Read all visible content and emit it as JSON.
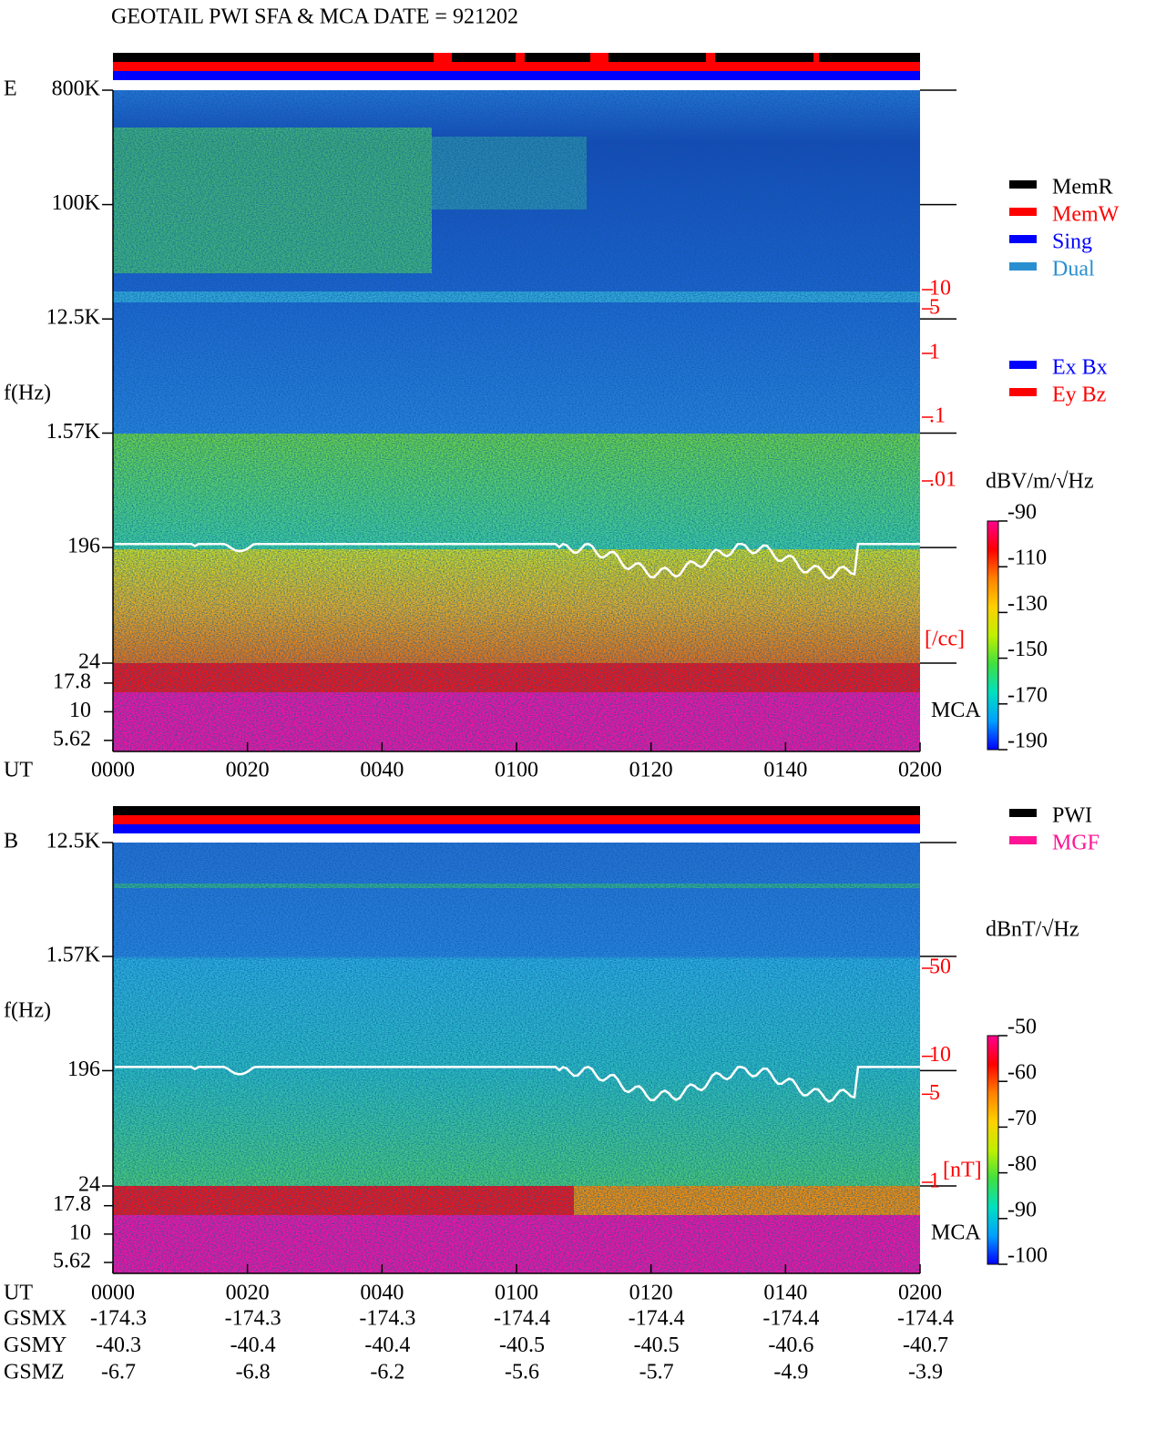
{
  "chart_data": [
    {
      "type": "spectrogram",
      "title": "GEOTAIL  PWI SFA & MCA   DATE = 921202",
      "panel_label": "E",
      "y_label": "f(Hz)",
      "yscale": "log",
      "ylim": [
        24,
        800000
      ],
      "yticks": [
        {
          "value": 800000,
          "label": "800K"
        },
        {
          "value": 100000,
          "label": "100K"
        },
        {
          "value": 12500,
          "label": "12.5K"
        },
        {
          "value": 1570,
          "label": "1.57K"
        },
        196,
        24
      ],
      "mca_label": "MCA",
      "mca_ylim": [
        4.5,
        26.6
      ],
      "mca_yticks": [
        17.8,
        10,
        5.62
      ],
      "x_label": "UT",
      "xlim": [
        0,
        120
      ],
      "xticks": [
        {
          "value": 0,
          "label": "0000"
        },
        {
          "value": 20,
          "label": "0020"
        },
        {
          "value": 40,
          "label": "0040"
        },
        {
          "value": 60,
          "label": "0100"
        },
        {
          "value": 80,
          "label": "0120"
        },
        {
          "value": 100,
          "label": "0140"
        },
        {
          "value": 120,
          "label": "0200"
        }
      ],
      "y2_label": "[/cc]",
      "y2lim": [
        0.01,
        10
      ],
      "y2color": "#ff0000",
      "y2ticks": [
        10,
        5,
        1,
        {
          "value": 0.1,
          "label": ".1"
        },
        {
          "value": 0.01,
          "label": ".01"
        }
      ],
      "legend": [
        {
          "name": "MemR",
          "color": "#000000"
        },
        {
          "name": "MemW",
          "color": "#ff0000"
        },
        {
          "name": "Sing",
          "color": "#0000ff"
        },
        {
          "name": "Dual",
          "color": "#2a8fd0"
        }
      ],
      "legend2": [
        {
          "name": "Ex Bx",
          "color": "#0000ff"
        },
        {
          "name": "Ey Bz",
          "color": "#ff0000"
        }
      ],
      "colorbar": {
        "label": "dBV/m/√Hz",
        "lim": [
          -190,
          -90
        ],
        "ticks": [
          -90,
          -110,
          -130,
          -150,
          -170,
          -190
        ],
        "colors": [
          "#0000ff",
          "#00a0ff",
          "#00e0c0",
          "#40e040",
          "#c0f000",
          "#ffd000",
          "#ff8000",
          "#ff0000",
          "#ff0090"
        ]
      }
    },
    {
      "type": "spectrogram",
      "panel_label": "B",
      "y_label": "f(Hz)",
      "yscale": "log",
      "ylim": [
        24,
        12500
      ],
      "yticks": [
        {
          "value": 12500,
          "label": "12.5K"
        },
        {
          "value": 1570,
          "label": "1.57K"
        },
        196,
        24
      ],
      "mca_label": "MCA",
      "mca_ylim": [
        4.5,
        26.6
      ],
      "mca_yticks": [
        17.8,
        10,
        5.62
      ],
      "x_label": "UT",
      "xlim": [
        0,
        120
      ],
      "xticks": [
        {
          "value": 0,
          "label": "0000"
        },
        {
          "value": 20,
          "label": "0020"
        },
        {
          "value": 40,
          "label": "0040"
        },
        {
          "value": 60,
          "label": "0100"
        },
        {
          "value": 80,
          "label": "0120"
        },
        {
          "value": 100,
          "label": "0140"
        },
        {
          "value": 120,
          "label": "0200"
        }
      ],
      "y2_label": "[nT]",
      "y2lim": [
        1,
        50
      ],
      "y2color": "#ff0000",
      "y2ticks": [
        50,
        10,
        5,
        1
      ],
      "legend": [
        {
          "name": "PWI",
          "color": "#000000"
        },
        {
          "name": "MGF",
          "color": "#ff1493"
        }
      ],
      "colorbar": {
        "label": "dBnT/√Hz",
        "lim": [
          -100,
          -50
        ],
        "ticks": [
          -50,
          -60,
          -70,
          -80,
          -90,
          -100
        ],
        "colors": [
          "#0000ff",
          "#00a0ff",
          "#00e0c0",
          "#40e040",
          "#c0f000",
          "#ffd000",
          "#ff8000",
          "#ff0000",
          "#ff0090"
        ]
      },
      "orbit": {
        "labels": [
          "GSMX",
          "GSMY",
          "GSMZ"
        ],
        "rows": [
          [
            -174.3,
            -174.3,
            -174.3,
            -174.4,
            -174.4,
            -174.4,
            -174.4
          ],
          [
            -40.3,
            -40.4,
            -40.4,
            -40.5,
            -40.5,
            -40.6,
            -40.7
          ],
          [
            -6.7,
            -6.8,
            -6.2,
            -5.6,
            -5.7,
            -4.9,
            -3.9
          ]
        ]
      }
    }
  ]
}
